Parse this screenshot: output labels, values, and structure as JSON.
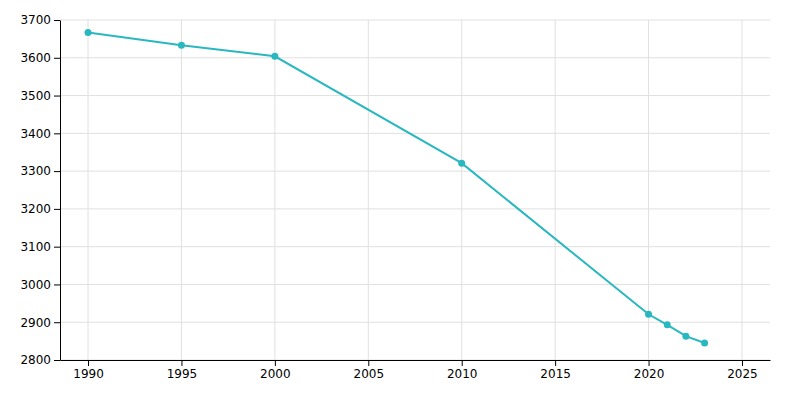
{
  "chart_data": {
    "type": "line",
    "x": [
      1990,
      1995,
      2000,
      2010,
      2020,
      2021,
      2022,
      2023
    ],
    "values": [
      3667,
      3633,
      3604,
      3321,
      2921,
      2893,
      2863,
      2845
    ],
    "color": "#29b8c0",
    "marker": "circle",
    "xlim": [
      1988.5,
      2026.5
    ],
    "ylim": [
      2800,
      3700
    ],
    "xticks": [
      1990,
      1995,
      2000,
      2005,
      2010,
      2015,
      2020,
      2025
    ],
    "yticks": [
      2800,
      2900,
      3000,
      3100,
      3200,
      3300,
      3400,
      3500,
      3600,
      3700
    ],
    "grid": true
  }
}
